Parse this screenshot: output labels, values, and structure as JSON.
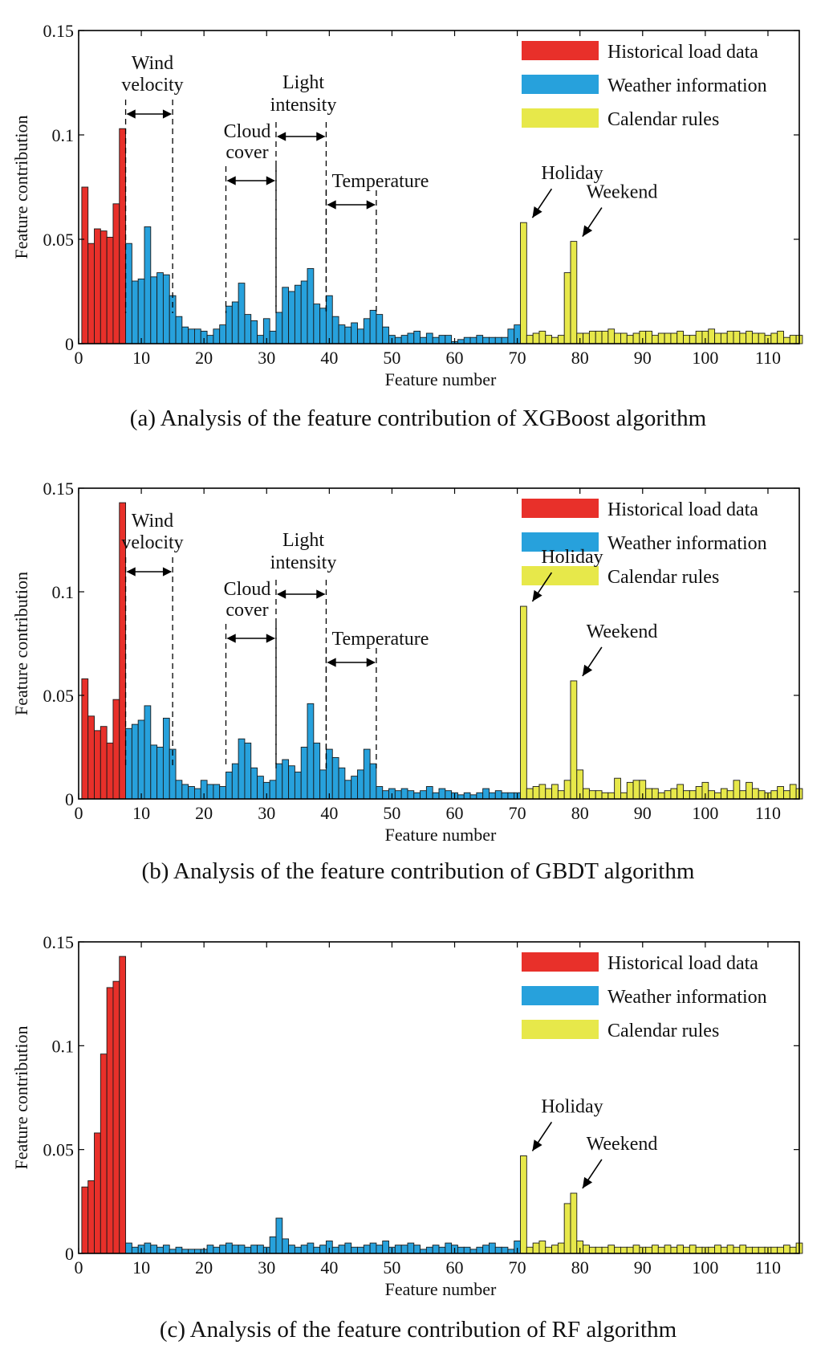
{
  "chart_data": [
    {
      "type": "bar",
      "caption": "(a) Analysis of the feature contribution of XGBoost algorithm",
      "xlabel": "Feature number",
      "ylabel": "Feature contribution",
      "xlim": [
        0,
        115
      ],
      "ylim": [
        0,
        0.15
      ],
      "xticks": [
        0,
        10,
        20,
        30,
        40,
        50,
        60,
        70,
        80,
        90,
        100,
        110
      ],
      "yticks": [
        0,
        0.05,
        0.1,
        0.15
      ],
      "ytick_labels": [
        "0",
        "0.05",
        "0.1",
        "0.15"
      ],
      "legend_position": "top-right",
      "legend": [
        {
          "label": "Historical load data",
          "color": "#e8302a"
        },
        {
          "label": "Weather information",
          "color": "#27a1dc"
        },
        {
          "label": "Calendar rules",
          "color": "#e7e84a"
        }
      ],
      "series": [
        {
          "name": "Historical load data",
          "color": "#e8302a",
          "start": 1,
          "values": [
            0.075,
            0.048,
            0.055,
            0.054,
            0.051,
            0.067,
            0.103
          ]
        },
        {
          "name": "Weather information",
          "color": "#27a1dc",
          "start": 8,
          "values": [
            0.048,
            0.03,
            0.031,
            0.056,
            0.032,
            0.034,
            0.033,
            0.023,
            0.013,
            0.008,
            0.007,
            0.007,
            0.006,
            0.004,
            0.007,
            0.009,
            0.018,
            0.02,
            0.029,
            0.014,
            0.011,
            0.004,
            0.012,
            0.006,
            0.015,
            0.027,
            0.025,
            0.028,
            0.03,
            0.036,
            0.019,
            0.017,
            0.023,
            0.013,
            0.009,
            0.008,
            0.01,
            0.007,
            0.012,
            0.016,
            0.014,
            0.008,
            0.004,
            0.003,
            0.004,
            0.005,
            0.006,
            0.003,
            0.005,
            0.003,
            0.004,
            0.004,
            0.001,
            0.002,
            0.003,
            0.003,
            0.004,
            0.003,
            0.003,
            0.003,
            0.003,
            0.007,
            0.009
          ]
        },
        {
          "name": "Calendar rules",
          "color": "#e7e84a",
          "start": 71,
          "values": [
            0.058,
            0.004,
            0.005,
            0.006,
            0.004,
            0.003,
            0.004,
            0.034,
            0.049,
            0.005,
            0.005,
            0.006,
            0.006,
            0.006,
            0.007,
            0.005,
            0.005,
            0.004,
            0.005,
            0.006,
            0.006,
            0.004,
            0.005,
            0.005,
            0.005,
            0.006,
            0.004,
            0.004,
            0.006,
            0.006,
            0.007,
            0.005,
            0.005,
            0.006,
            0.006,
            0.005,
            0.006,
            0.005,
            0.005,
            0.004,
            0.005,
            0.006,
            0.003,
            0.004,
            0.004
          ]
        }
      ],
      "spans": [
        {
          "label": [
            "Wind",
            "velocity"
          ],
          "from": 7.5,
          "to": 15
        },
        {
          "label": [
            "Cloud",
            "cover"
          ],
          "from": 23.5,
          "to": 31.5
        },
        {
          "label": [
            "Light",
            "intensity"
          ],
          "from": 31.5,
          "to": 39.5
        },
        {
          "label": [
            "Temperature"
          ],
          "from": 39.5,
          "to": 47.5
        }
      ],
      "callouts": [
        {
          "label": "Holiday",
          "x": 71,
          "y": 0.058
        },
        {
          "label": "Weekend",
          "x": 79,
          "y": 0.049
        }
      ]
    },
    {
      "type": "bar",
      "caption": "(b) Analysis of the feature contribution of GBDT algorithm",
      "xlabel": "Feature number",
      "ylabel": "Feature contribution",
      "xlim": [
        0,
        115
      ],
      "ylim": [
        0,
        0.15
      ],
      "xticks": [
        0,
        10,
        20,
        30,
        40,
        50,
        60,
        70,
        80,
        90,
        100,
        110
      ],
      "yticks": [
        0,
        0.05,
        0.1,
        0.15
      ],
      "ytick_labels": [
        "0",
        "0.05",
        "0.1",
        "0.15"
      ],
      "legend_position": "top-right",
      "legend": [
        {
          "label": "Historical load data",
          "color": "#e8302a"
        },
        {
          "label": "Weather information",
          "color": "#27a1dc"
        },
        {
          "label": "Calendar rules",
          "color": "#e7e84a"
        }
      ],
      "series": [
        {
          "name": "Historical load data",
          "color": "#e8302a",
          "start": 1,
          "values": [
            0.058,
            0.04,
            0.033,
            0.035,
            0.027,
            0.048,
            0.143
          ]
        },
        {
          "name": "Weather information",
          "color": "#27a1dc",
          "start": 8,
          "values": [
            0.034,
            0.036,
            0.038,
            0.045,
            0.026,
            0.025,
            0.039,
            0.024,
            0.009,
            0.007,
            0.006,
            0.005,
            0.009,
            0.007,
            0.007,
            0.006,
            0.013,
            0.017,
            0.029,
            0.027,
            0.015,
            0.011,
            0.008,
            0.009,
            0.017,
            0.019,
            0.016,
            0.013,
            0.025,
            0.046,
            0.027,
            0.014,
            0.024,
            0.02,
            0.015,
            0.009,
            0.011,
            0.014,
            0.024,
            0.017,
            0.006,
            0.004,
            0.005,
            0.004,
            0.005,
            0.004,
            0.003,
            0.004,
            0.006,
            0.003,
            0.005,
            0.004,
            0.003,
            0.002,
            0.003,
            0.002,
            0.003,
            0.005,
            0.003,
            0.004,
            0.003,
            0.003,
            0.003
          ]
        },
        {
          "name": "Calendar rules",
          "color": "#e7e84a",
          "start": 71,
          "values": [
            0.093,
            0.005,
            0.006,
            0.007,
            0.005,
            0.007,
            0.004,
            0.009,
            0.057,
            0.014,
            0.005,
            0.004,
            0.004,
            0.003,
            0.003,
            0.01,
            0.003,
            0.008,
            0.009,
            0.009,
            0.005,
            0.005,
            0.003,
            0.004,
            0.005,
            0.007,
            0.004,
            0.004,
            0.006,
            0.008,
            0.004,
            0.003,
            0.005,
            0.004,
            0.009,
            0.004,
            0.008,
            0.005,
            0.004,
            0.003,
            0.004,
            0.006,
            0.004,
            0.007,
            0.005
          ]
        }
      ],
      "spans": [
        {
          "label": [
            "Wind",
            "velocity"
          ],
          "from": 7.5,
          "to": 15
        },
        {
          "label": [
            "Cloud",
            "cover"
          ],
          "from": 23.5,
          "to": 31.5
        },
        {
          "label": [
            "Light",
            "intensity"
          ],
          "from": 31.5,
          "to": 39.5
        },
        {
          "label": [
            "Temperature"
          ],
          "from": 39.5,
          "to": 47.5
        }
      ],
      "callouts": [
        {
          "label": "Holiday",
          "x": 71,
          "y": 0.093
        },
        {
          "label": "Weekend",
          "x": 79,
          "y": 0.057
        }
      ]
    },
    {
      "type": "bar",
      "caption": "(c) Analysis of the feature contribution of RF algorithm",
      "xlabel": "Feature number",
      "ylabel": "Feature contribution",
      "xlim": [
        0,
        115
      ],
      "ylim": [
        0,
        0.15
      ],
      "xticks": [
        0,
        10,
        20,
        30,
        40,
        50,
        60,
        70,
        80,
        90,
        100,
        110
      ],
      "yticks": [
        0,
        0.05,
        0.1,
        0.15
      ],
      "ytick_labels": [
        "0",
        "0.05",
        "0.1",
        "0.15"
      ],
      "legend_position": "top-right",
      "legend": [
        {
          "label": "Historical load data",
          "color": "#e8302a"
        },
        {
          "label": "Weather information",
          "color": "#27a1dc"
        },
        {
          "label": "Calendar rules",
          "color": "#e7e84a"
        }
      ],
      "series": [
        {
          "name": "Historical load data",
          "color": "#e8302a",
          "start": 1,
          "values": [
            0.032,
            0.035,
            0.058,
            0.096,
            0.128,
            0.131,
            0.143
          ]
        },
        {
          "name": "Weather information",
          "color": "#27a1dc",
          "start": 8,
          "values": [
            0.005,
            0.003,
            0.004,
            0.005,
            0.004,
            0.003,
            0.004,
            0.002,
            0.003,
            0.002,
            0.002,
            0.002,
            0.002,
            0.004,
            0.003,
            0.004,
            0.005,
            0.004,
            0.004,
            0.003,
            0.004,
            0.004,
            0.003,
            0.008,
            0.017,
            0.007,
            0.004,
            0.003,
            0.004,
            0.005,
            0.003,
            0.004,
            0.006,
            0.003,
            0.004,
            0.005,
            0.003,
            0.003,
            0.004,
            0.005,
            0.004,
            0.006,
            0.003,
            0.004,
            0.004,
            0.005,
            0.004,
            0.002,
            0.003,
            0.004,
            0.003,
            0.005,
            0.004,
            0.003,
            0.003,
            0.002,
            0.003,
            0.004,
            0.005,
            0.003,
            0.003,
            0.002,
            0.006
          ]
        },
        {
          "name": "Calendar rules",
          "color": "#e7e84a",
          "start": 71,
          "values": [
            0.047,
            0.003,
            0.005,
            0.006,
            0.003,
            0.004,
            0.005,
            0.024,
            0.029,
            0.006,
            0.004,
            0.003,
            0.003,
            0.003,
            0.004,
            0.003,
            0.003,
            0.003,
            0.004,
            0.003,
            0.003,
            0.004,
            0.003,
            0.004,
            0.003,
            0.004,
            0.003,
            0.004,
            0.003,
            0.003,
            0.003,
            0.004,
            0.003,
            0.004,
            0.003,
            0.004,
            0.003,
            0.003,
            0.003,
            0.003,
            0.003,
            0.003,
            0.004,
            0.003,
            0.005
          ]
        }
      ],
      "spans": [],
      "callouts": [
        {
          "label": "Holiday",
          "x": 71,
          "y": 0.047
        },
        {
          "label": "Weekend",
          "x": 79,
          "y": 0.029
        }
      ]
    }
  ]
}
